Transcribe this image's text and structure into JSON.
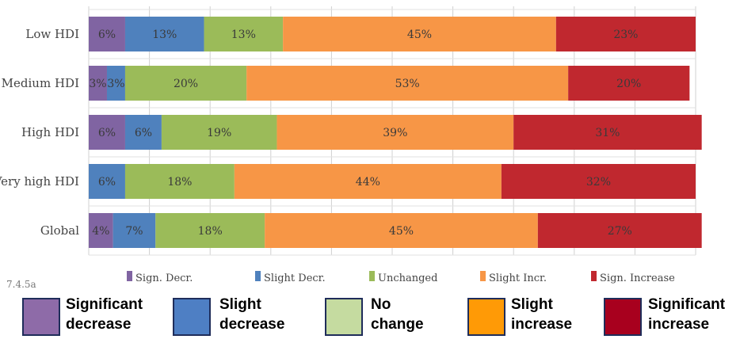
{
  "chart_data": {
    "type": "bar",
    "orientation": "horizontal",
    "stacked": true,
    "categories": [
      "Low HDI",
      "Medium HDI",
      "High HDI",
      "Very high HDI",
      "Global"
    ],
    "series": [
      {
        "name": "Sign. Decr.",
        "color": "#8064a2",
        "values": [
          6,
          3,
          6,
          0,
          4
        ],
        "labels": [
          "6%",
          "3%",
          "6%",
          "",
          "4%"
        ]
      },
      {
        "name": "Slight Decr.",
        "color": "#4f81bd",
        "values": [
          13,
          3,
          6,
          6,
          7
        ],
        "labels": [
          "13%",
          "3%",
          "6%",
          "6%",
          "7%"
        ]
      },
      {
        "name": "Unchanged",
        "color": "#9bbb59",
        "values": [
          13,
          20,
          19,
          18,
          18
        ],
        "labels": [
          "13%",
          "20%",
          "19%",
          "18%",
          "18%"
        ]
      },
      {
        "name": "Slight Incr.",
        "color": "#f79646",
        "values": [
          45,
          53,
          39,
          44,
          45
        ],
        "labels": [
          "45%",
          "53%",
          "39%",
          "44%",
          "45%"
        ]
      },
      {
        "name": "Sign. Increase",
        "color": "#c0282f",
        "values": [
          23,
          20,
          31,
          32,
          27
        ],
        "labels": [
          "23%",
          "20%",
          "31%",
          "32%",
          "27%"
        ]
      }
    ],
    "xlim": [
      0,
      100
    ],
    "grid": true,
    "legend_position": "bottom"
  },
  "figure_code": "7.4.5a",
  "big_legend": [
    {
      "text": "Significant\ndecrease",
      "color": "#8e6ba8"
    },
    {
      "text": "Slight\ndecrease",
      "color": "#4e7fc4"
    },
    {
      "text": "No\nchange",
      "color": "#c5dba0"
    },
    {
      "text": "Slight\nincrease",
      "color": "#ff9a06"
    },
    {
      "text": "Significant\nincrease",
      "color": "#a8001e"
    }
  ]
}
